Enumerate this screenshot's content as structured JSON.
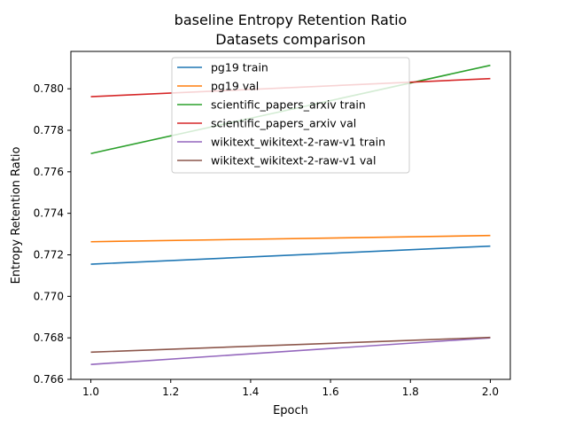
{
  "chart_data": {
    "type": "line",
    "title_line1": "baseline Entropy Retention Ratio",
    "title_line2": "Datasets comparison",
    "xlabel": "Epoch",
    "ylabel": "Entropy Retention Ratio",
    "xlim": [
      0.95,
      2.05
    ],
    "ylim": [
      0.766,
      0.7818
    ],
    "x_ticks": [
      1.0,
      1.2,
      1.4,
      1.6,
      1.8,
      2.0
    ],
    "x_tick_labels": [
      "1.0",
      "1.2",
      "1.4",
      "1.6",
      "1.8",
      "2.0"
    ],
    "y_ticks": [
      0.766,
      0.768,
      0.77,
      0.772,
      0.774,
      0.776,
      0.778,
      0.78
    ],
    "y_tick_labels": [
      "0.766",
      "0.768",
      "0.770",
      "0.772",
      "0.774",
      "0.776",
      "0.778",
      "0.780"
    ],
    "grid": false,
    "legend_position": "top-center",
    "series": [
      {
        "name": "pg19 train",
        "color": "#1f77b4",
        "x": [
          1.0,
          2.0
        ],
        "y": [
          0.77155,
          0.77242
        ]
      },
      {
        "name": "pg19 val",
        "color": "#ff7f0e",
        "x": [
          1.0,
          2.0
        ],
        "y": [
          0.77263,
          0.77293
        ]
      },
      {
        "name": "scientific_papers_arxiv train",
        "color": "#2ca02c",
        "x": [
          1.0,
          2.0
        ],
        "y": [
          0.77688,
          0.78113
        ]
      },
      {
        "name": "scientific_papers_arxiv val",
        "color": "#d62728",
        "x": [
          1.0,
          2.0
        ],
        "y": [
          0.77962,
          0.78049
        ]
      },
      {
        "name": "wikitext_wikitext-2-raw-v1 train",
        "color": "#9467bd",
        "x": [
          1.0,
          2.0
        ],
        "y": [
          0.76672,
          0.768
        ]
      },
      {
        "name": "wikitext_wikitext-2-raw-v1 val",
        "color": "#8c564b",
        "x": [
          1.0,
          2.0
        ],
        "y": [
          0.76731,
          0.76802
        ]
      }
    ]
  }
}
